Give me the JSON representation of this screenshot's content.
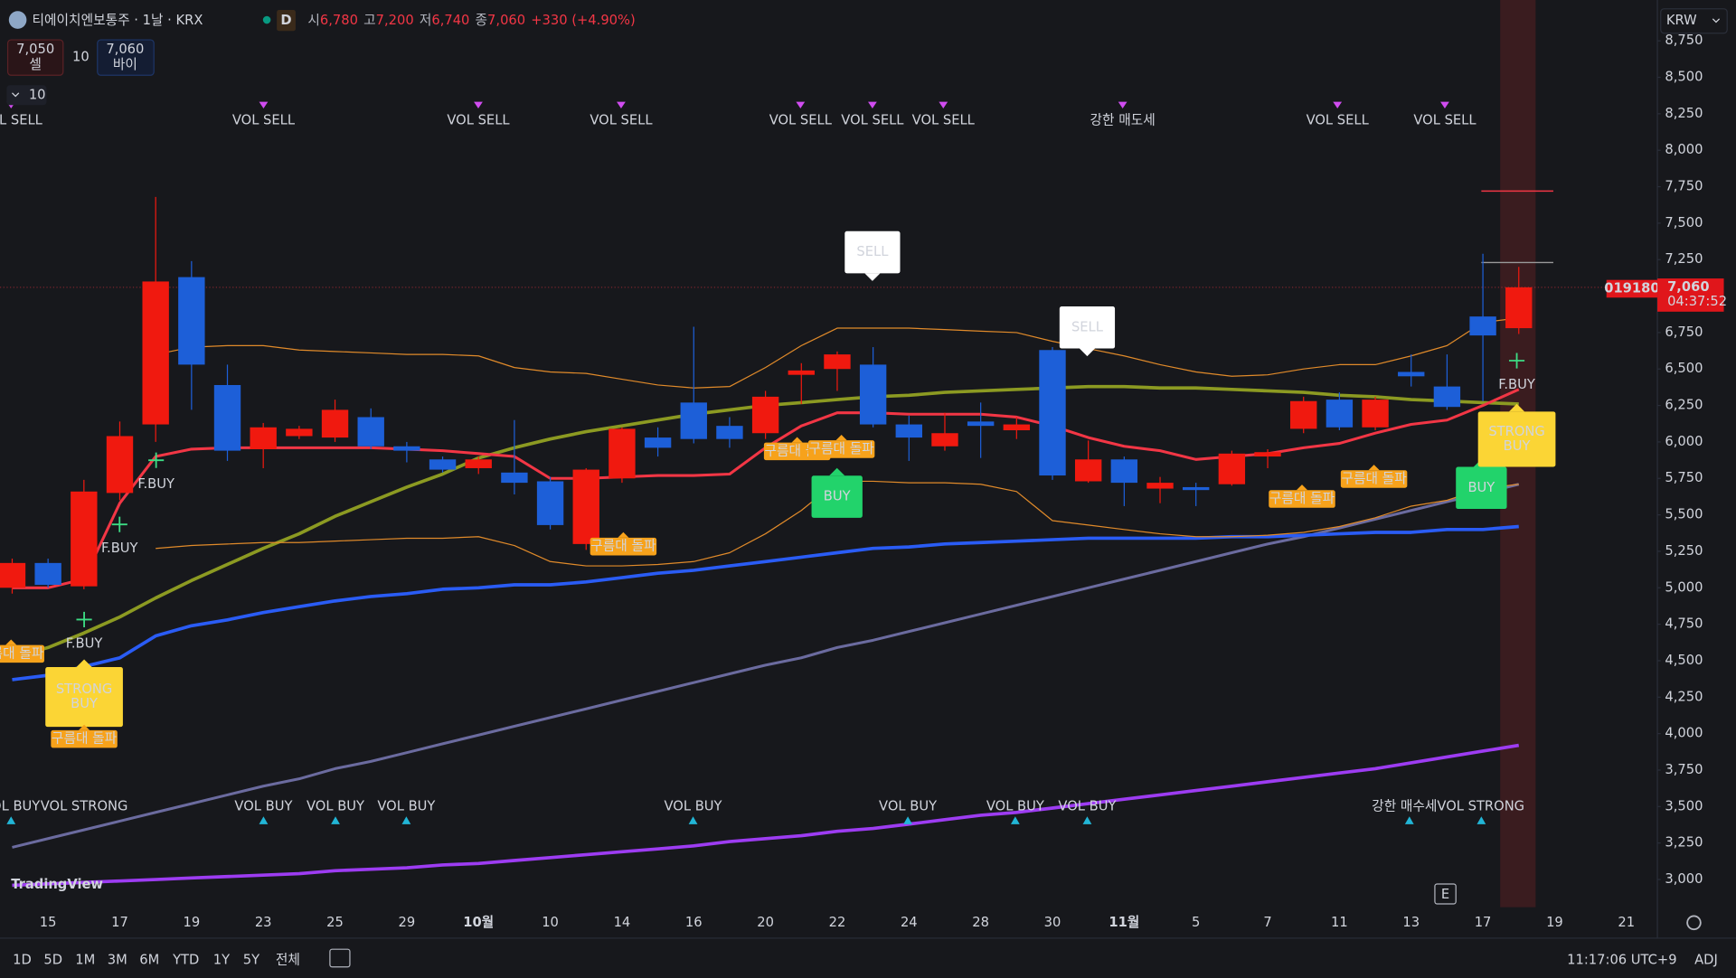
{
  "header": {
    "symbol": "티에이치엔보통주 · 1날 · KRX",
    "interval_badge": "D",
    "open_label": "시",
    "open": "6,780",
    "high_label": "고",
    "high": "7,200",
    "low_label": "저",
    "low": "6,740",
    "close_label": "종",
    "close": "7,060",
    "change": "+330 (+4.90%)"
  },
  "trade": {
    "sell_price": "7,050",
    "sell_label": "셀",
    "quantity": "10",
    "buy_price": "7,060",
    "buy_label": "바이",
    "lots": "10"
  },
  "currency": "KRW",
  "toolbar": {
    "ranges": [
      "1D",
      "5D",
      "1M",
      "3M",
      "6M",
      "YTD",
      "1Y",
      "5Y",
      "전체"
    ],
    "clock": "11:17:06 UTC+9",
    "adjust": "ADJ"
  },
  "watermark": "TradingView",
  "event_badge": "E",
  "chart_data": {
    "type": "candlestick",
    "categories": [
      null,
      "15",
      null,
      "17",
      null,
      "19",
      null,
      "23",
      null,
      "25",
      null,
      "29",
      null,
      "10월",
      null,
      "10",
      null,
      "14",
      null,
      "16",
      null,
      "20",
      null,
      "22",
      null,
      "24",
      null,
      "28",
      null,
      "30",
      null,
      "11월",
      null,
      "5",
      null,
      "7",
      null,
      "11",
      null,
      "13",
      null,
      "17",
      null,
      "19",
      null,
      "21"
    ],
    "open": [
      5000,
      5170,
      5010,
      5650,
      6120,
      7130,
      6390,
      5950,
      6040,
      6030,
      6170,
      5970,
      5880,
      5820,
      5790,
      5730,
      5300,
      5750,
      6030,
      6270,
      6110,
      6060,
      6460,
      6500,
      6530,
      6120,
      5970,
      6140,
      6080,
      6630,
      5730,
      5880,
      5680,
      5690,
      5710,
      5900,
      6090,
      6290,
      6100,
      6480,
      6380,
      6860,
      6780,
      null,
      null,
      null
    ],
    "high": [
      5200,
      5200,
      5740,
      6140,
      7680,
      7240,
      6530,
      6130,
      6110,
      6290,
      6230,
      6000,
      5900,
      5900,
      6150,
      5760,
      5820,
      6100,
      6100,
      6790,
      6170,
      6350,
      6540,
      6620,
      6650,
      6180,
      6200,
      6270,
      6170,
      6650,
      6010,
      5900,
      5760,
      5720,
      5940,
      5950,
      6310,
      6340,
      6310,
      6600,
      6600,
      7290,
      7200,
      null,
      null,
      null
    ],
    "low": [
      4960,
      5000,
      4990,
      5600,
      6000,
      6220,
      5870,
      5820,
      6020,
      6000,
      5950,
      5860,
      5790,
      5780,
      5640,
      5400,
      5260,
      5720,
      5900,
      5990,
      5960,
      6020,
      6260,
      6350,
      6100,
      5870,
      5940,
      5890,
      6020,
      5740,
      5720,
      5560,
      5580,
      5560,
      5700,
      5820,
      6060,
      6080,
      6080,
      6380,
      6220,
      6280,
      6740,
      null,
      null,
      null
    ],
    "close": [
      5170,
      5020,
      5660,
      6040,
      7100,
      6530,
      5940,
      6100,
      6090,
      6220,
      5970,
      5940,
      5810,
      5880,
      5720,
      5430,
      5810,
      6090,
      5960,
      6020,
      6020,
      6310,
      6490,
      6600,
      6120,
      6030,
      6060,
      6110,
      6120,
      5770,
      5880,
      5720,
      5720,
      5670,
      5920,
      5930,
      6280,
      6100,
      6290,
      6450,
      6240,
      6730,
      7060,
      null,
      null,
      null
    ],
    "up_color": "#f0190f",
    "down_color": "#1d5fd8",
    "series": [
      {
        "color": "#6b6b9f",
        "width": 2.5,
        "values": [
          3220,
          3280,
          3340,
          3400,
          3460,
          3520,
          3580,
          3640,
          3690,
          3760,
          3810,
          3870,
          3930,
          3990,
          4050,
          4110,
          4170,
          4230,
          4290,
          4350,
          4410,
          4470,
          4520,
          4590,
          4640,
          4700,
          4760,
          4820,
          4880,
          4940,
          5000,
          5060,
          5120,
          5180,
          5240,
          5300,
          5350,
          5410,
          5470,
          5530,
          5590,
          5650,
          5710,
          null,
          null,
          null
        ]
      },
      {
        "color": "#9d3cf2",
        "width": 3,
        "values": [
          2960,
          2970,
          2980,
          2990,
          3000,
          3010,
          3020,
          3030,
          3040,
          3060,
          3070,
          3080,
          3100,
          3110,
          3130,
          3150,
          3170,
          3190,
          3210,
          3230,
          3260,
          3280,
          3300,
          3330,
          3350,
          3380,
          3410,
          3440,
          3460,
          3490,
          3520,
          3550,
          3580,
          3610,
          3640,
          3670,
          3700,
          3730,
          3760,
          3800,
          3840,
          3880,
          3920,
          null,
          null,
          null
        ]
      },
      {
        "color": "#2a5cf5",
        "width": 3,
        "values": [
          4370,
          4400,
          4460,
          4520,
          4670,
          4740,
          4780,
          4830,
          4870,
          4910,
          4940,
          4960,
          4990,
          5000,
          5020,
          5020,
          5040,
          5070,
          5100,
          5120,
          5150,
          5180,
          5210,
          5240,
          5270,
          5280,
          5300,
          5310,
          5320,
          5330,
          5340,
          5340,
          5340,
          5340,
          5350,
          5350,
          5360,
          5370,
          5380,
          5380,
          5400,
          5400,
          5420,
          null,
          null,
          null
        ]
      },
      {
        "color": "#8c9a22",
        "width": 3,
        "values": [
          4520,
          4590,
          4690,
          4800,
          4930,
          5050,
          5160,
          5270,
          5370,
          5490,
          5590,
          5690,
          5780,
          5890,
          5960,
          6020,
          6070,
          6110,
          6150,
          6190,
          6220,
          6250,
          6270,
          6290,
          6310,
          6320,
          6340,
          6350,
          6360,
          6370,
          6380,
          6380,
          6370,
          6370,
          6360,
          6350,
          6340,
          6320,
          6310,
          6290,
          6280,
          6270,
          6260,
          null,
          null,
          null
        ]
      },
      {
        "color": "#e08a2a",
        "width": 1,
        "values": [
          null,
          null,
          null,
          null,
          6600,
          6650,
          6660,
          6660,
          6630,
          6620,
          6610,
          6600,
          6600,
          6590,
          6510,
          6480,
          6470,
          6430,
          6390,
          6370,
          6380,
          6510,
          6660,
          6780,
          6780,
          6780,
          6770,
          6760,
          6750,
          6690,
          6640,
          6590,
          6530,
          6480,
          6450,
          6460,
          6500,
          6530,
          6530,
          6590,
          6660,
          6820,
          6850,
          null,
          null,
          null
        ]
      },
      {
        "color": "#e08a2a",
        "width": 1,
        "values": [
          null,
          null,
          null,
          null,
          5270,
          5290,
          5300,
          5310,
          5310,
          5320,
          5330,
          5340,
          5340,
          5350,
          5290,
          5180,
          5150,
          5150,
          5160,
          5180,
          5240,
          5370,
          5530,
          5730,
          5730,
          5720,
          5720,
          5710,
          5660,
          5460,
          5430,
          5400,
          5370,
          5350,
          5350,
          5360,
          5380,
          5420,
          5480,
          5560,
          5600,
          5680,
          5710,
          null,
          null,
          null
        ]
      },
      {
        "color": "#f23645",
        "width": 2.5,
        "values": [
          5000,
          5000,
          5060,
          5580,
          5900,
          5950,
          5960,
          5960,
          5960,
          5960,
          5960,
          5950,
          5940,
          5920,
          5900,
          5750,
          5750,
          5760,
          5770,
          5770,
          5780,
          5960,
          6110,
          6200,
          6200,
          6190,
          6190,
          6190,
          6170,
          6110,
          6030,
          5970,
          5940,
          5880,
          5900,
          5920,
          5960,
          5990,
          6060,
          6120,
          6150,
          6250,
          6360,
          null,
          null,
          null
        ]
      }
    ],
    "ylim": [
      2810,
      9030
    ],
    "yticks": [
      {
        "value": 3000,
        "label": "3,000"
      },
      {
        "value": 3250,
        "label": "3,250"
      },
      {
        "value": 3500,
        "label": "3,500"
      },
      {
        "value": 3750,
        "label": "3,750"
      },
      {
        "value": 4000,
        "label": "4,000"
      },
      {
        "value": 4250,
        "label": "4,250"
      },
      {
        "value": 4500,
        "label": "4,500"
      },
      {
        "value": 4750,
        "label": "4,750"
      },
      {
        "value": 5000,
        "label": "5,000"
      },
      {
        "value": 5250,
        "label": "5,250"
      },
      {
        "value": 5500,
        "label": "5,500"
      },
      {
        "value": 5750,
        "label": "5,750"
      },
      {
        "value": 6000,
        "label": "6,000"
      },
      {
        "value": 6250,
        "label": "6,250"
      },
      {
        "value": 6500,
        "label": "6,500"
      },
      {
        "value": 6750,
        "label": "6,750"
      },
      {
        "value": 7000,
        "label": "7,000"
      },
      {
        "value": 7250,
        "label": "7,250"
      },
      {
        "value": 7500,
        "label": "7,500"
      },
      {
        "value": 7750,
        "label": "7,750"
      },
      {
        "value": 8000,
        "label": "8,000"
      },
      {
        "value": 8250,
        "label": "8,250"
      },
      {
        "value": 8500,
        "label": "8,500"
      },
      {
        "value": 8750,
        "label": "8,750"
      }
    ],
    "grid": false,
    "last_price": {
      "value": 7060,
      "label": "7,060"
    },
    "symbol_code": "019180",
    "countdown": "04:37:52",
    "levels": [
      {
        "value": 7720,
        "color": "#f23645"
      },
      {
        "value": 7230,
        "color": "#9a9a9a"
      }
    ],
    "signals": {
      "top": [
        "VOL SELL",
        "VOL SELL",
        "VOL SELL",
        "VOL SELL",
        "VOL SELL",
        "VOL SELL",
        "VOL SELL",
        "강한 매도세",
        "VOL SELL",
        "VOL SELL"
      ],
      "bottom": [
        "VOL BUY",
        "VOL STRONG",
        "VOL BUY",
        "VOL BUY",
        "VOL BUY",
        "VOL BUY",
        "VOL BUY",
        "VOL BUY",
        "VOL BUY",
        "강한 매수세VOL STRONG"
      ],
      "boxes": [
        [
          "SELL"
        ],
        [
          "SELL"
        ],
        [
          "BUY"
        ],
        [
          "BUY"
        ],
        [
          "STRONG",
          "BUY"
        ],
        [
          "STRONG",
          "BUY"
        ]
      ],
      "fbuy": [
        "F.BUY",
        "F.BUY",
        "F.BUY",
        "F.BUY"
      ],
      "breakout": [
        "구름대 돌파",
        "구름대 돌파",
        "구름대 돌파",
        "구름대 돌파",
        "구름대 돌파",
        "구름대 돌파",
        "구름대 돌파"
      ]
    }
  }
}
